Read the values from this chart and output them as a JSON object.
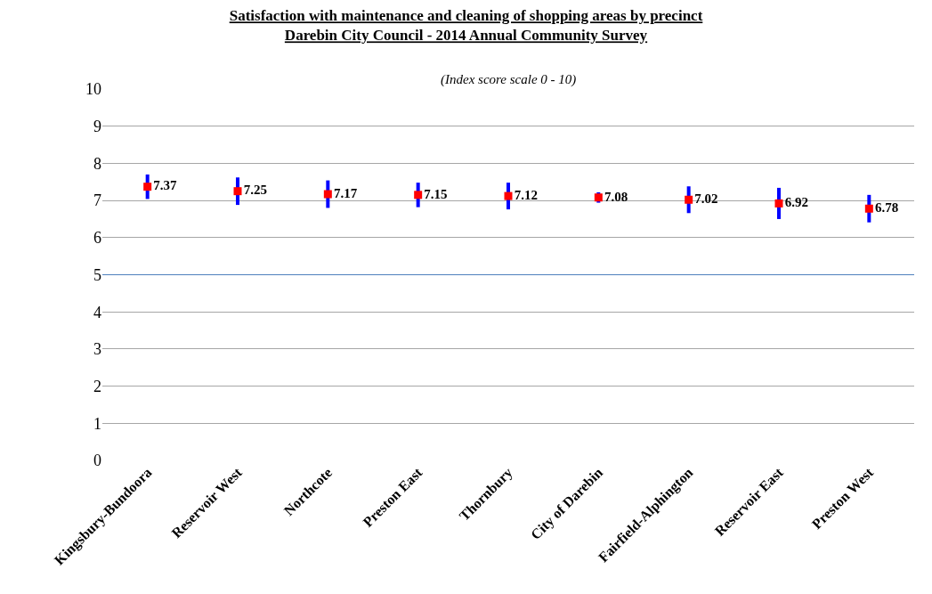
{
  "chart_data": {
    "type": "scatter",
    "title": "Satisfaction with maintenance and cleaning of shopping areas by precinct",
    "subtitle": "Darebin City Council - 2014 Annual Community Survey",
    "annotations": [
      "(Index score scale 0 - 10)"
    ],
    "categories": [
      "Kingsbury-Bundoora",
      "Reservoir West",
      "Northcote",
      "Preston East",
      "Thornbury",
      "City of Darebin",
      "Fairfield-Alphington",
      "Reservoir East",
      "Preston West"
    ],
    "series": [
      {
        "color": "#ff0000",
        "values": [
          7.37,
          7.25,
          7.17,
          7.15,
          7.12,
          7.08,
          7.02,
          6.92,
          6.78
        ],
        "errors": [
          0.33,
          0.37,
          0.37,
          0.33,
          0.36,
          0.14,
          0.36,
          0.42,
          0.37
        ]
      }
    ],
    "data_labels": true,
    "marker": "square",
    "ylim": [
      0,
      10
    ],
    "yticks": [
      0,
      1,
      2,
      3,
      4,
      5,
      6,
      7,
      8,
      9,
      10
    ],
    "grid": "y",
    "ref_lines": [
      {
        "axis": "y",
        "value": 5,
        "label": null,
        "color": "#4f81bd"
      }
    ]
  }
}
